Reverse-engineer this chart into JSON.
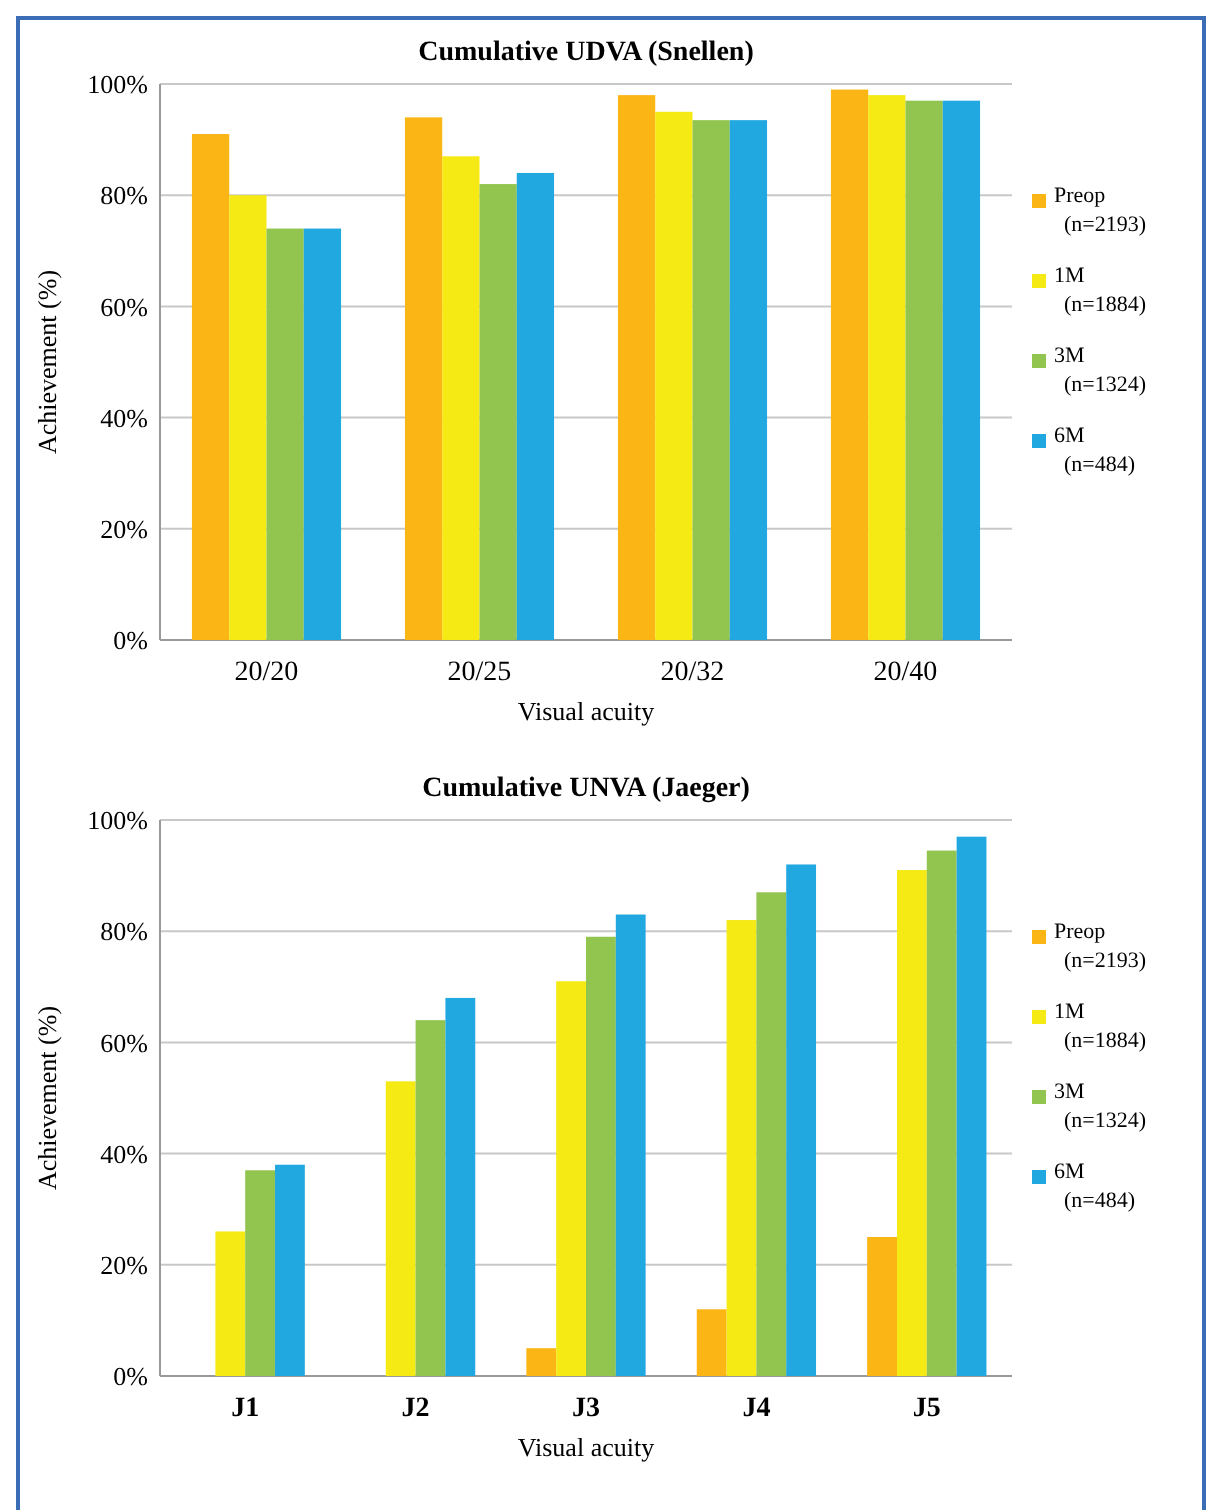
{
  "chart_data": [
    {
      "type": "bar",
      "title": "Cumulative UDVA (Snellen)",
      "xlabel": "Visual acuity",
      "ylabel": "Achievement (%)",
      "categories": [
        "20/20",
        "20/25",
        "20/32",
        "20/40"
      ],
      "series": [
        {
          "name": "Preop\n(n=2193)",
          "color": "#fbb514",
          "values": [
            91,
            94,
            98,
            99
          ]
        },
        {
          "name": "1M\n(n=1884)",
          "color": "#f5ea14",
          "values": [
            80,
            87,
            95,
            98
          ]
        },
        {
          "name": "3M\n(n=1324)",
          "color": "#92c450",
          "values": [
            74,
            82,
            93.5,
            97
          ]
        },
        {
          "name": "6M\n(n=484)",
          "color": "#22a8e0",
          "values": [
            74,
            84,
            93.5,
            97
          ]
        }
      ],
      "ylim": [
        0,
        100
      ],
      "yticks": [
        {
          "value": 0,
          "label": "0%"
        },
        {
          "value": 20,
          "label": "20%"
        },
        {
          "value": 40,
          "label": "40%"
        },
        {
          "value": 60,
          "label": "60%"
        },
        {
          "value": 80,
          "label": "80%"
        },
        {
          "value": 100,
          "label": "100%"
        }
      ],
      "grid": "y",
      "legend": "right"
    },
    {
      "type": "bar",
      "title": "Cumulative UNVA (Jaeger)",
      "xlabel": "Visual acuity",
      "ylabel": "Achievement (%)",
      "categories": [
        "J1",
        "J2",
        "J3",
        "J4",
        "J5"
      ],
      "series": [
        {
          "name": "Preop\n(n=2193)",
          "color": "#fbb514",
          "values": [
            0,
            0,
            5,
            12,
            25
          ]
        },
        {
          "name": "1M\n(n=1884)",
          "color": "#f5ea14",
          "values": [
            26,
            53,
            71,
            82,
            91
          ]
        },
        {
          "name": "3M\n(n=1324)",
          "color": "#92c450",
          "values": [
            37,
            64,
            79,
            87,
            94.5
          ]
        },
        {
          "name": "6M\n(n=484)",
          "color": "#22a8e0",
          "values": [
            38,
            68,
            83,
            92,
            97
          ]
        }
      ],
      "ylim": [
        0,
        100
      ],
      "yticks": [
        {
          "value": 0,
          "label": "0%"
        },
        {
          "value": 20,
          "label": "20%"
        },
        {
          "value": 40,
          "label": "40%"
        },
        {
          "value": 60,
          "label": "60%"
        },
        {
          "value": 80,
          "label": "80%"
        },
        {
          "value": 100,
          "label": "100%"
        }
      ],
      "grid": "y",
      "legend": "right"
    }
  ]
}
